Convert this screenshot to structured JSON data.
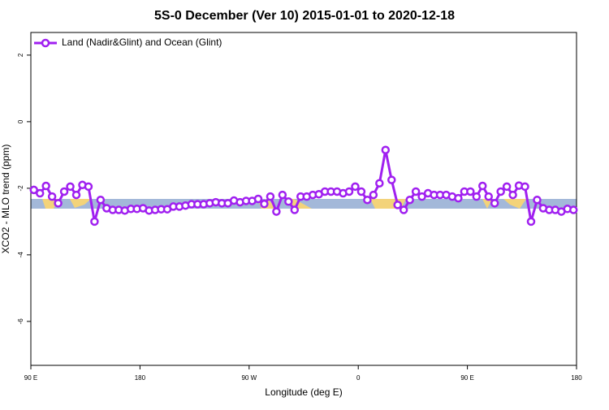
{
  "chart_data": {
    "type": "line",
    "title": "5S-0 December (Ver 10)   2015-01-01 to 2020-12-18",
    "x_label": "Longitude (deg E)",
    "y_label": "XCO2 - MLO trend (ppm)",
    "xlim": [
      90,
      540
    ],
    "xticks": [
      {
        "value": 90,
        "label": "90 E"
      },
      {
        "value": 180,
        "label": "180"
      },
      {
        "value": 270,
        "label": "90 W"
      },
      {
        "value": 360,
        "label": "0"
      },
      {
        "value": 450,
        "label": "90 E"
      },
      {
        "value": 540,
        "label": "180"
      }
    ],
    "ylim": [
      -7.32,
      2.68
    ],
    "yticks": [
      -6,
      -4,
      -2,
      0,
      2
    ],
    "legend": "upper left",
    "x": [
      92.5,
      97.5,
      102.5,
      107.5,
      112.5,
      117.5,
      122.5,
      127.5,
      132.5,
      137.5,
      142.5,
      147.5,
      152.5,
      157.5,
      162.5,
      167.5,
      172.5,
      177.5,
      182.5,
      187.5,
      192.5,
      197.5,
      202.5,
      207.5,
      212.5,
      217.5,
      222.5,
      227.5,
      232.5,
      237.5,
      242.5,
      247.5,
      252.5,
      257.5,
      262.5,
      267.5,
      272.5,
      277.5,
      282.5,
      287.5,
      292.5,
      297.5,
      302.5,
      307.5,
      312.5,
      317.5,
      322.5,
      327.5,
      332.5,
      337.5,
      342.5,
      347.5,
      352.5,
      357.5,
      362.5,
      367.5,
      372.5,
      377.5,
      382.5,
      387.5,
      392.5,
      397.5,
      402.5,
      407.5,
      412.5,
      417.5,
      422.5,
      427.5,
      432.5,
      437.5,
      442.5,
      447.5,
      452.5,
      457.5,
      462.5,
      467.5,
      472.5,
      477.5,
      482.5,
      487.5,
      492.5,
      497.5,
      502.5,
      507.5,
      512.5,
      517.5,
      522.5,
      527.5,
      532.5,
      537.5
    ],
    "series": [
      {
        "name": "Land (Nadir&Glint) and Ocean (Glint)",
        "color": "#a020f0",
        "values": [
          -2.05,
          -2.15,
          -1.93,
          -2.25,
          -2.45,
          -2.1,
          -1.95,
          -2.2,
          -1.9,
          -1.95,
          -3.0,
          -2.35,
          -2.6,
          -2.65,
          -2.65,
          -2.67,
          -2.62,
          -2.62,
          -2.6,
          -2.67,
          -2.65,
          -2.63,
          -2.63,
          -2.55,
          -2.55,
          -2.52,
          -2.48,
          -2.48,
          -2.48,
          -2.45,
          -2.42,
          -2.45,
          -2.45,
          -2.37,
          -2.42,
          -2.38,
          -2.38,
          -2.32,
          -2.47,
          -2.25,
          -2.7,
          -2.2,
          -2.4,
          -2.65,
          -2.25,
          -2.25,
          -2.2,
          -2.18,
          -2.1,
          -2.1,
          -2.1,
          -2.15,
          -2.1,
          -1.95,
          -2.1,
          -2.35,
          -2.2,
          -1.85,
          -0.85,
          -1.75,
          -2.5,
          -2.65,
          -2.35,
          -2.1,
          -2.25,
          -2.15,
          -2.2,
          -2.2,
          -2.2,
          -2.25,
          -2.3,
          -2.1,
          -2.1,
          -2.25,
          -1.93,
          -2.25,
          -2.45,
          -2.1,
          -1.95,
          -2.2,
          -1.92,
          -1.95,
          -3.0,
          -2.35,
          -2.6,
          -2.65,
          -2.65,
          -2.7,
          -2.62,
          -2.65
        ]
      }
    ]
  }
}
